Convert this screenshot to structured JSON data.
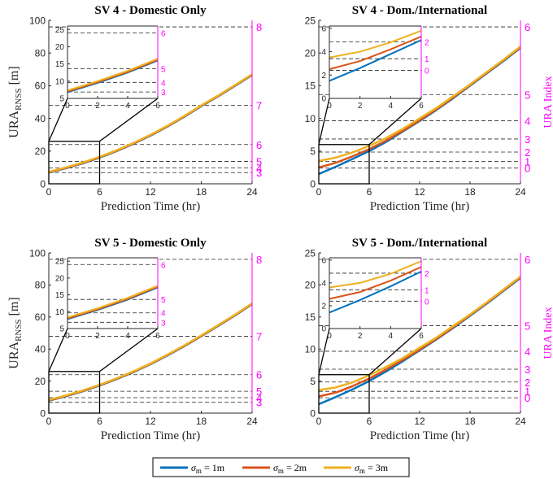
{
  "colors": {
    "blue": "#0072BD",
    "red": "#D95319",
    "yellow": "#EDB120",
    "magenta": "#FF00FF",
    "axis": "#262626",
    "grid": "#000000"
  },
  "legend": [
    {
      "sym": "σ",
      "sub": "m",
      "text": " = 1m",
      "color": "#0072BD"
    },
    {
      "sym": "σ",
      "sub": "m",
      "text": " = 2m",
      "color": "#D95319"
    },
    {
      "sym": "σ",
      "sub": "m",
      "text": " = 3m",
      "color": "#EDB120"
    }
  ],
  "chart_data": [
    {
      "type": "line",
      "title": "SV 4 - Domestic Only",
      "xlabel": "Prediction Time (hr)",
      "ylabel": "URA",
      "ylabel_sub": "RNSS",
      "ylabel_unit": " [m]",
      "xlim": [
        0,
        24
      ],
      "ylim": [
        0,
        100
      ],
      "xticks": [
        0,
        6,
        12,
        18,
        24
      ],
      "yticks": [
        0,
        20,
        40,
        60,
        80,
        100
      ],
      "x": [
        0,
        2,
        4,
        6,
        8,
        10,
        12,
        14,
        16,
        18,
        20,
        22,
        24
      ],
      "series": [
        {
          "name": "σm = 1m",
          "color": "#0072BD",
          "values": [
            6.8,
            9.5,
            12.5,
            16,
            20,
            24.5,
            29.5,
            35,
            41,
            47.5,
            53.5,
            60,
            66.5
          ]
        },
        {
          "name": "σm = 2m",
          "color": "#D95319",
          "values": [
            7.0,
            9.7,
            12.7,
            16.2,
            20.2,
            24.7,
            29.7,
            35.2,
            41.2,
            47.7,
            53.7,
            60.2,
            66.7
          ]
        },
        {
          "name": "σm = 3m",
          "color": "#EDB120",
          "values": [
            7.3,
            10,
            13,
            16.5,
            20.5,
            25,
            30,
            35.5,
            41.5,
            48,
            54,
            60.5,
            67
          ]
        }
      ],
      "ura_index": {
        "values": [
          3,
          4,
          5,
          6,
          7,
          8
        ],
        "bounds": [
          6.85,
          9.65,
          13.65,
          24,
          48,
          96
        ],
        "label": ""
      },
      "inset": {
        "xlim": [
          0,
          6
        ],
        "ylim": [
          5,
          26
        ],
        "xticks": [
          0,
          2,
          4,
          6
        ],
        "yticks": [
          5,
          10,
          15,
          20,
          25
        ],
        "ura_values": [
          3,
          4,
          5,
          6
        ],
        "ura_bounds": [
          6.85,
          9.65,
          13.65,
          24
        ],
        "zoom_ymax": 26
      }
    },
    {
      "type": "line",
      "title": "SV 4 - Dom./International",
      "xlabel": "Prediction Time (hr)",
      "ylabel": "",
      "ylabel_sub": "",
      "ylabel_unit": "",
      "xlim": [
        0,
        24
      ],
      "ylim": [
        0,
        25
      ],
      "xticks": [
        0,
        6,
        12,
        18,
        24
      ],
      "yticks": [
        0,
        5,
        10,
        15,
        20,
        25
      ],
      "x": [
        0,
        2,
        4,
        6,
        8,
        10,
        12,
        14,
        16,
        18,
        20,
        22,
        24
      ],
      "series": [
        {
          "name": "σm = 1m",
          "color": "#0072BD",
          "values": [
            1.5,
            2.6,
            3.8,
            5.0,
            6.4,
            8.0,
            9.6,
            11.3,
            13.1,
            15.0,
            16.9,
            18.8,
            20.8
          ]
        },
        {
          "name": "σm = 2m",
          "color": "#D95319",
          "values": [
            2.5,
            3.2,
            4.2,
            5.3,
            6.6,
            8.1,
            9.7,
            11.4,
            13.2,
            15.1,
            17.0,
            18.9,
            20.9
          ]
        },
        {
          "name": "σm = 3m",
          "color": "#EDB120",
          "values": [
            3.5,
            4.0,
            4.8,
            5.8,
            7.0,
            8.4,
            10.0,
            11.6,
            13.4,
            15.2,
            17.1,
            19.0,
            21.0
          ]
        }
      ],
      "ura_index": {
        "values": [
          0,
          1,
          2,
          3,
          4,
          5,
          6
        ],
        "bounds": [
          2.4,
          3.4,
          4.85,
          6.85,
          9.65,
          13.65,
          24
        ],
        "label": "URA Index"
      },
      "inset": {
        "xlim": [
          0,
          6
        ],
        "ylim": [
          0,
          6.2
        ],
        "xticks": [
          0,
          2,
          4,
          6
        ],
        "yticks": [
          0,
          2,
          4,
          6
        ],
        "ura_values": [
          0,
          1,
          2
        ],
        "ura_bounds": [
          2.4,
          3.4,
          4.85
        ],
        "zoom_ymax": 6
      }
    },
    {
      "type": "line",
      "title": "SV 5 - Domestic Only",
      "xlabel": "Prediction Time (hr)",
      "ylabel": "URA",
      "ylabel_sub": "RNSS",
      "ylabel_unit": " [m]",
      "xlim": [
        0,
        24
      ],
      "ylim": [
        0,
        100
      ],
      "xticks": [
        0,
        6,
        12,
        18,
        24
      ],
      "yticks": [
        0,
        20,
        40,
        60,
        80,
        100
      ],
      "x": [
        0,
        2,
        4,
        6,
        8,
        10,
        12,
        14,
        16,
        18,
        20,
        22,
        24
      ],
      "series": [
        {
          "name": "σm = 1m",
          "color": "#0072BD",
          "values": [
            7.8,
            10.5,
            13.6,
            17.2,
            21.2,
            25.6,
            30.5,
            36,
            41.8,
            48,
            54.5,
            61,
            68
          ]
        },
        {
          "name": "σm = 2m",
          "color": "#D95319",
          "values": [
            8.0,
            10.7,
            13.8,
            17.4,
            21.4,
            25.8,
            30.7,
            36.2,
            42,
            48.2,
            54.7,
            61.2,
            68.2
          ]
        },
        {
          "name": "σm = 3m",
          "color": "#EDB120",
          "values": [
            8.3,
            11,
            14.1,
            17.7,
            21.7,
            26.1,
            31,
            36.5,
            42.3,
            48.5,
            55,
            61.5,
            68.5
          ]
        }
      ],
      "ura_index": {
        "values": [
          3,
          4,
          5,
          6,
          7,
          8
        ],
        "bounds": [
          6.85,
          9.65,
          13.65,
          24,
          48,
          96
        ],
        "label": ""
      },
      "inset": {
        "xlim": [
          0,
          6
        ],
        "ylim": [
          5,
          26
        ],
        "xticks": [
          0,
          2,
          4,
          6
        ],
        "yticks": [
          5,
          10,
          15,
          20,
          25
        ],
        "ura_values": [
          3,
          4,
          5,
          6
        ],
        "ura_bounds": [
          6.85,
          9.65,
          13.65,
          24
        ],
        "zoom_ymax": 26
      }
    },
    {
      "type": "line",
      "title": "SV 5 - Dom./International",
      "xlabel": "Prediction Time (hr)",
      "ylabel": "",
      "ylabel_sub": "",
      "ylabel_unit": "",
      "xlim": [
        0,
        24
      ],
      "ylim": [
        0,
        25
      ],
      "xticks": [
        0,
        6,
        12,
        18,
        24
      ],
      "yticks": [
        0,
        5,
        10,
        15,
        20,
        25
      ],
      "x": [
        0,
        2,
        4,
        6,
        8,
        10,
        12,
        14,
        16,
        18,
        20,
        22,
        24
      ],
      "series": [
        {
          "name": "σm = 1m",
          "color": "#0072BD",
          "values": [
            1.4,
            2.5,
            3.7,
            5.0,
            6.5,
            8.1,
            9.8,
            11.5,
            13.3,
            15.2,
            17.1,
            19.1,
            21.1
          ]
        },
        {
          "name": "σm = 2m",
          "color": "#D95319",
          "values": [
            2.6,
            3.2,
            4.2,
            5.4,
            6.8,
            8.3,
            9.9,
            11.6,
            13.4,
            15.3,
            17.2,
            19.2,
            21.2
          ]
        },
        {
          "name": "σm = 3m",
          "color": "#EDB120",
          "values": [
            3.6,
            4.0,
            4.8,
            5.9,
            7.2,
            8.6,
            10.2,
            11.8,
            13.6,
            15.4,
            17.3,
            19.3,
            21.3
          ]
        }
      ],
      "ura_index": {
        "values": [
          0,
          1,
          2,
          3,
          4,
          5,
          6
        ],
        "bounds": [
          2.4,
          3.4,
          4.85,
          6.85,
          9.65,
          13.65,
          24
        ],
        "label": "URA Index"
      },
      "inset": {
        "xlim": [
          0,
          6
        ],
        "ylim": [
          0,
          6.2
        ],
        "xticks": [
          0,
          2,
          4,
          6
        ],
        "yticks": [
          0,
          2,
          4,
          6
        ],
        "ura_values": [
          0,
          1,
          2
        ],
        "ura_bounds": [
          2.4,
          3.4,
          4.85
        ],
        "zoom_ymax": 6
      }
    }
  ]
}
